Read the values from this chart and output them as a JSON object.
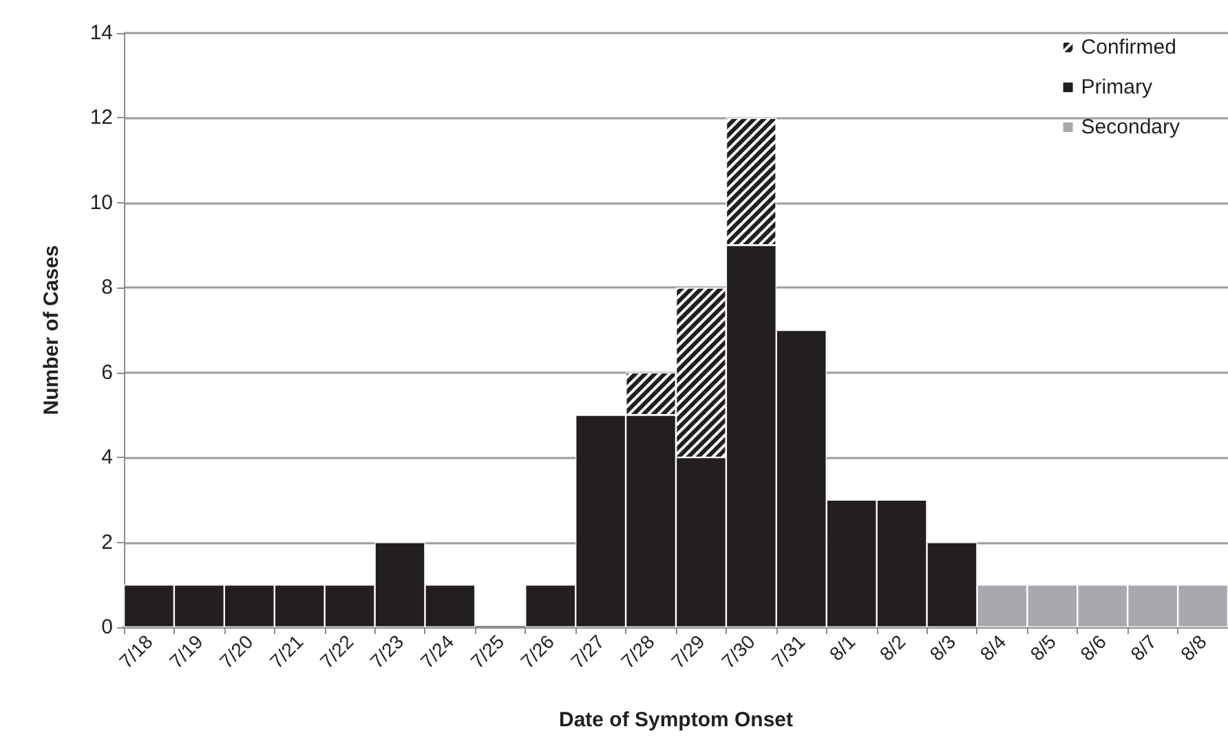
{
  "chart_data": {
    "type": "bar",
    "xlabel": "Date of Symptom Onset",
    "ylabel": "Number of Cases",
    "categories": [
      "7/18",
      "7/19",
      "7/20",
      "7/21",
      "7/22",
      "7/23",
      "7/24",
      "7/25",
      "7/26",
      "7/27",
      "7/28",
      "7/29",
      "7/30",
      "7/31",
      "8/1",
      "8/2",
      "8/3",
      "8/4",
      "8/5",
      "8/6",
      "8/7",
      "8/8"
    ],
    "stacked": true,
    "series": [
      {
        "name": "Primary",
        "color": "#231f20",
        "values": [
          1,
          1,
          1,
          1,
          1,
          2,
          1,
          0,
          1,
          5,
          5,
          4,
          9,
          7,
          3,
          3,
          2,
          0,
          0,
          0,
          0,
          0
        ]
      },
      {
        "name": "Secondary",
        "color": "#a7a9ac",
        "values": [
          0,
          0,
          0,
          0,
          0,
          0,
          0,
          0,
          0,
          0,
          0,
          0,
          0,
          0,
          0,
          0,
          0,
          1,
          1,
          1,
          1,
          1
        ]
      },
      {
        "name": "Confirmed",
        "color": "#231f20",
        "values": [
          0,
          0,
          0,
          0,
          0,
          0,
          0,
          0,
          0,
          0,
          1,
          4,
          3,
          0,
          0,
          0,
          0,
          0,
          0,
          0,
          0,
          0
        ]
      }
    ],
    "ylim": [
      0,
      14
    ],
    "yticks": [
      0,
      2,
      4,
      6,
      8,
      10,
      12,
      14
    ],
    "grid": "y",
    "legend": "top right"
  }
}
